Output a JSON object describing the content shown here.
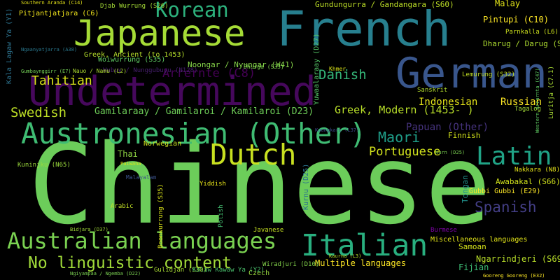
{
  "words": [
    "Chinese",
    "Undetermined",
    "French",
    "German",
    "Austronesian (Other)",
    "Japanese",
    "Australian languages",
    "Italian",
    "Dutch",
    "Korean",
    "No linguistic content",
    "Latin",
    "Spanish",
    "Maori",
    "Swedish",
    "Tahitian",
    "Danish",
    "Arrernte (C8)",
    "Portuguese",
    "Indonesian",
    "Russian",
    "Greek, Modern (1453- )",
    "Papuan (Other)",
    "Gamilaraay / Gamilaroi / Kamilaroi (D23)",
    "Gundungurra / Gandangara (S60)",
    "Pintupi (C10)",
    "Malay",
    "Thai",
    "Norwegian",
    "Multiple languages",
    "Ngarrindjeri (S69)",
    "Fijian",
    "Samoan",
    "Finnish",
    "Awabakal (S66)",
    "Kala Lagaw Ya (Y1)",
    "Noongar / Nyungar (W41)",
    "Woiwurrung (S35)",
    "Dharug / Darug (S64)",
    "Pitjantjatjara (C6)",
    "Gubbi Gubbi (E29)",
    "Czech",
    "Tongan",
    "Yiddish",
    "Arabic",
    "Kurnu (D25)",
    "Yuwaalaraay (D27)",
    "Wubuy / Nunggubuyu (N128)",
    "Greek, Ancient (to 1453)",
    "Miscellaneous languages",
    "Burmese",
    "Sanskrit",
    "Tagalog",
    "Lemurung (S32)",
    "Parnkalla (L6)",
    "Javanese",
    "Polish",
    "Nakkara (N8)",
    "Kuninjku (N65)",
    "Gulidjan (S30)",
    "Kalaw Kawaw Ya (Y2)",
    "Djab Wurrung (S26)",
    "Khmer",
    "Wiradjuri (D10)",
    "Luritja (C7.1)",
    "Boonwurrung (S35)",
    "Dhurga (S33)",
    "Nauo / Namu (L2)",
    "Southern Aranda (C14)",
    "Western Arrarnta (C47)",
    "Kuungkari (L37)",
    "Ngaanyatjarra (A38)",
    "Gumbaynggirr (E7)",
    "Paiwana",
    "Malayalam",
    "Kurn (D25)",
    "Gooreng Gooreng (E32)",
    "Kaurna (L3)",
    "Bidjara (D37)",
    "Ngiyampaa / Ngemba (D22)"
  ]
}
